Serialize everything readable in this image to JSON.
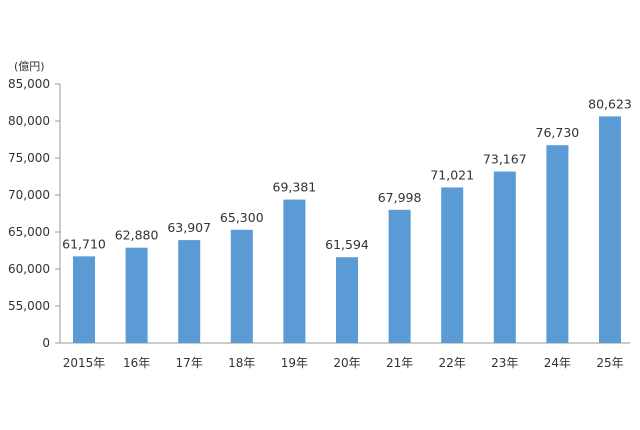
{
  "chart_data": {
    "type": "bar",
    "y_unit_label": "(億円)",
    "categories": [
      "2015年",
      "16年",
      "17年",
      "18年",
      "19年",
      "20年",
      "21年",
      "22年",
      "23年",
      "24年",
      "25年"
    ],
    "values": [
      61710,
      62880,
      63907,
      65300,
      69381,
      61594,
      67998,
      71021,
      73167,
      76730,
      80623
    ],
    "value_labels": [
      "61,710",
      "62,880",
      "63,907",
      "65,300",
      "69,381",
      "61,594",
      "67,998",
      "71,021",
      "73,167",
      "76,730",
      "80,623"
    ],
    "y_ticks": [
      0,
      55000,
      60000,
      65000,
      70000,
      75000,
      80000,
      85000
    ],
    "y_tick_labels": [
      "0",
      "55,000",
      "60,000",
      "65,000",
      "70,000",
      "75,000",
      "80,000",
      "85,000"
    ],
    "axis_break": true,
    "ylim": [
      50000,
      85000
    ],
    "grid": false,
    "bar_color": "#5b9bd5"
  }
}
